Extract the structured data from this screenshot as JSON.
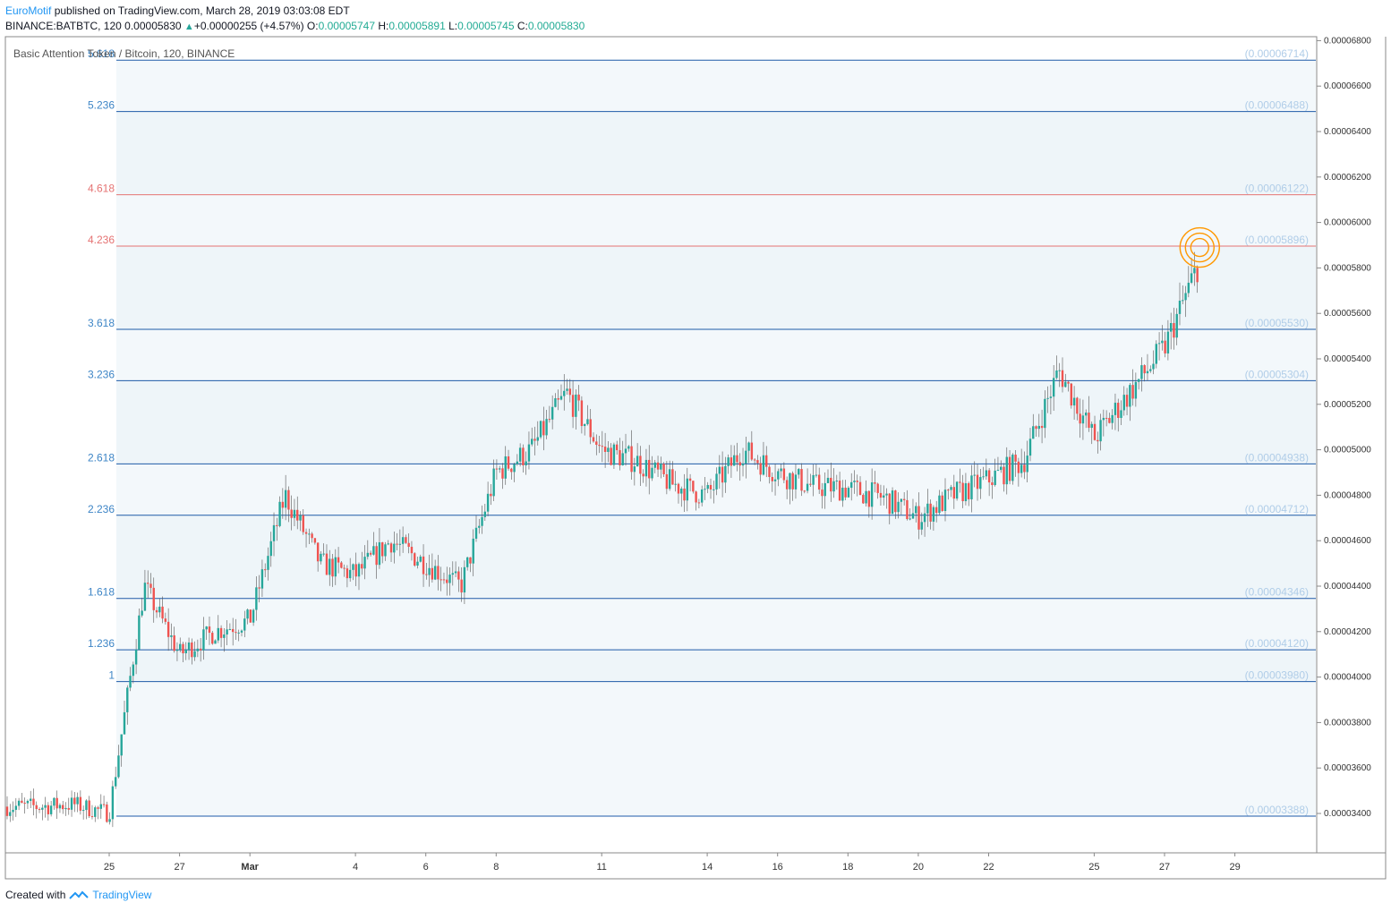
{
  "header": {
    "author": "EuroMotif",
    "published_text": " published on TradingView.com, March 28, 2019 03:03:08 EDT",
    "symbol": "BINANCE:BATBTC, 120",
    "last": "0.00005830",
    "change": "+0.00000255 (+4.57%)",
    "o_label": "O:",
    "o_value": "0.00005747",
    "h_label": "H:",
    "h_value": "0.00005891",
    "l_label": "L:",
    "l_value": "0.00005745",
    "c_label": "C:",
    "c_value": "0.00005830"
  },
  "footer": {
    "created_with": "Created with",
    "brand": "TradingView"
  },
  "colors": {
    "up": "#26a69a",
    "down": "#ef5350",
    "fib_blue": "#1e5aa8",
    "fib_red": "#e57373",
    "zone_fill": "#f3f8fb",
    "price_label": "#b0cde8",
    "highlight": "#ff9800"
  },
  "chart_data": {
    "type": "candlestick",
    "title": "Basic Attention Token / Bitcoin, 120, BINANCE",
    "y_axis_ticks": [
      "0.00006800",
      "0.00006600",
      "0.00006400",
      "0.00006200",
      "0.00006000",
      "0.00005800",
      "0.00005600",
      "0.00005400",
      "0.00005200",
      "0.00005000",
      "0.00004800",
      "0.00004600",
      "0.00004400",
      "0.00004200",
      "0.00004000",
      "0.00003800",
      "0.00003600",
      "0.00003400"
    ],
    "x_axis_ticks": [
      "25",
      "27",
      "Mar",
      "4",
      "6",
      "8",
      "11",
      "14",
      "16",
      "18",
      "20",
      "22",
      "25",
      "27",
      "29"
    ],
    "ylim": [
      3.18e-05,
      6.8e-05
    ],
    "fib_levels": [
      {
        "ratio": "5.618",
        "price": "(0.00006714)",
        "value": 6.714e-05,
        "color": "blue"
      },
      {
        "ratio": "5.236",
        "price": "(0.00006488)",
        "value": 6.488e-05,
        "color": "blue"
      },
      {
        "ratio": "4.618",
        "price": "(0.00006122)",
        "value": 6.122e-05,
        "color": "red"
      },
      {
        "ratio": "4.236",
        "price": "(0.00005896)",
        "value": 5.896e-05,
        "color": "red"
      },
      {
        "ratio": "3.618",
        "price": "(0.00005530)",
        "value": 5.53e-05,
        "color": "blue"
      },
      {
        "ratio": "3.236",
        "price": "(0.00005304)",
        "value": 5.304e-05,
        "color": "blue"
      },
      {
        "ratio": "2.618",
        "price": "(0.00004938)",
        "value": 4.938e-05,
        "color": "blue"
      },
      {
        "ratio": "2.236",
        "price": "(0.00004712)",
        "value": 4.712e-05,
        "color": "blue"
      },
      {
        "ratio": "1.618",
        "price": "(0.00004346)",
        "value": 4.346e-05,
        "color": "blue"
      },
      {
        "ratio": "1.236",
        "price": "(0.00004120)",
        "value": 4.12e-05,
        "color": "blue"
      },
      {
        "ratio": "1",
        "price": "(0.00003980)",
        "value": 3.98e-05,
        "color": "blue"
      },
      {
        "ratio": "",
        "price": "(0.00003388)",
        "value": 3.388e-05,
        "color": "blue"
      }
    ],
    "series": [
      {
        "date": "2019-02-23",
        "close": 3.43e-05
      },
      {
        "date": "2019-02-24",
        "close": 3.44e-05
      },
      {
        "date": "2019-02-25",
        "close": 3.4e-05
      },
      {
        "date": "2019-02-26",
        "close": 4.4e-05
      },
      {
        "date": "2019-02-27",
        "close": 4.1e-05
      },
      {
        "date": "2019-02-28",
        "close": 4.2e-05
      },
      {
        "date": "2019-03-01",
        "close": 4.25e-05
      },
      {
        "date": "2019-03-02",
        "close": 4.8e-05
      },
      {
        "date": "2019-03-03",
        "close": 4.5e-05
      },
      {
        "date": "2019-03-04",
        "close": 4.45e-05
      },
      {
        "date": "2019-03-05",
        "close": 4.6e-05
      },
      {
        "date": "2019-03-06",
        "close": 4.5e-05
      },
      {
        "date": "2019-03-07",
        "close": 4.4e-05
      },
      {
        "date": "2019-03-08",
        "close": 4.9e-05
      },
      {
        "date": "2019-03-09",
        "close": 5e-05
      },
      {
        "date": "2019-03-10",
        "close": 5.25e-05
      },
      {
        "date": "2019-03-11",
        "close": 5e-05
      },
      {
        "date": "2019-03-12",
        "close": 4.95e-05
      },
      {
        "date": "2019-03-13",
        "close": 4.85e-05
      },
      {
        "date": "2019-03-14",
        "close": 4.8e-05
      },
      {
        "date": "2019-03-15",
        "close": 5e-05
      },
      {
        "date": "2019-03-16",
        "close": 4.9e-05
      },
      {
        "date": "2019-03-17",
        "close": 4.84e-05
      },
      {
        "date": "2019-03-18",
        "close": 4.83e-05
      },
      {
        "date": "2019-03-19",
        "close": 4.79e-05
      },
      {
        "date": "2019-03-20",
        "close": 4.7e-05
      },
      {
        "date": "2019-03-21",
        "close": 4.8e-05
      },
      {
        "date": "2019-03-22",
        "close": 4.87e-05
      },
      {
        "date": "2019-03-23",
        "close": 4.95e-05
      },
      {
        "date": "2019-03-24",
        "close": 5.35e-05
      },
      {
        "date": "2019-03-25",
        "close": 5.05e-05
      },
      {
        "date": "2019-03-26",
        "close": 5.25e-05
      },
      {
        "date": "2019-03-27",
        "close": 5.45e-05
      },
      {
        "date": "2019-03-28",
        "close": 5.83e-05
      }
    ],
    "highlight": {
      "date": "2019-03-28",
      "value": 5.89e-05
    }
  }
}
